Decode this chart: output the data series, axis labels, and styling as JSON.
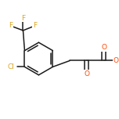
{
  "background_color": "#ffffff",
  "bond_color": "#1a1a1a",
  "atom_colors": {
    "F": "#daa520",
    "Cl": "#daa520",
    "O": "#ff4500",
    "C": "#1a1a1a"
  },
  "figsize": [
    1.52,
    1.52
  ],
  "dpi": 100,
  "bw": 1.1,
  "fs": 6.5
}
